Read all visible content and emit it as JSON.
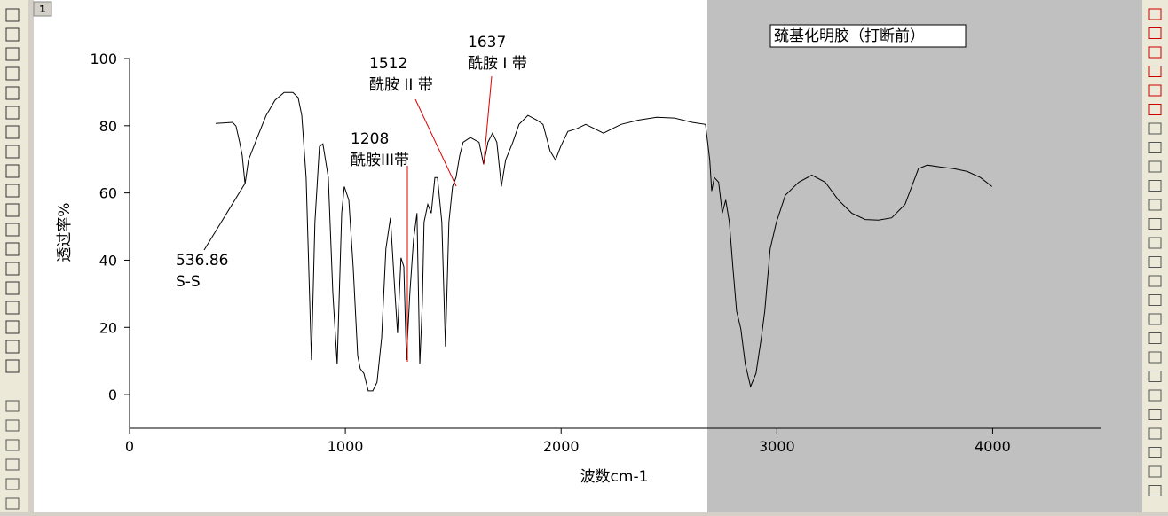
{
  "tab": "1",
  "chart_data": {
    "type": "line",
    "title": "巯基化明胶（打断前）",
    "x_label": "波数cm-1",
    "y_label": "透过率%",
    "xlim": [
      0,
      4500
    ],
    "xticks": [
      0,
      1000,
      2000,
      3000,
      4000
    ],
    "ylim": [
      -10,
      100
    ],
    "yticks": [
      0,
      20,
      40,
      60,
      80,
      100
    ],
    "color": "#000000",
    "x": [
      399,
      477,
      493,
      510,
      522,
      535,
      551,
      592,
      633,
      674,
      716,
      757,
      781,
      798,
      818,
      843,
      859,
      880,
      896,
      921,
      942,
      962,
      983,
      995,
      1016,
      1036,
      1057,
      1069,
      1086,
      1106,
      1127,
      1147,
      1168,
      1188,
      1209,
      1230,
      1242,
      1258,
      1271,
      1283,
      1299,
      1316,
      1332,
      1345,
      1357,
      1365,
      1382,
      1398,
      1415,
      1427,
      1447,
      1464,
      1480,
      1497,
      1513,
      1530,
      1546,
      1579,
      1620,
      1641,
      1661,
      1682,
      1702,
      1723,
      1743,
      1776,
      1805,
      1846,
      1887,
      1916,
      1949,
      1974,
      1998,
      2031,
      2072,
      2114,
      2155,
      2196,
      2237,
      2278,
      2360,
      2443,
      2525,
      2607,
      2669,
      2689,
      2698,
      2710,
      2730,
      2747,
      2763,
      2780,
      2796,
      2813,
      2833,
      2854,
      2878,
      2903,
      2928,
      2944,
      2969,
      2998,
      3039,
      3101,
      3162,
      3224,
      3285,
      3347,
      3409,
      3471,
      3532,
      3594,
      3656,
      3697,
      3758,
      3820,
      3882,
      3943,
      3997
    ],
    "values": [
      80.7,
      81.0,
      79.9,
      75.1,
      71.2,
      62.7,
      69.8,
      76.5,
      83.1,
      87.6,
      89.9,
      89.9,
      88.4,
      83.1,
      64.6,
      10.3,
      51.3,
      73.8,
      74.6,
      64.6,
      30.2,
      9.0,
      54.0,
      61.9,
      57.9,
      38.1,
      11.6,
      7.7,
      6.3,
      1.1,
      1.1,
      3.7,
      16.9,
      43.4,
      52.6,
      30.2,
      18.3,
      40.7,
      38.1,
      10.3,
      30.2,
      46.0,
      54.0,
      9.0,
      27.5,
      51.3,
      56.6,
      54.0,
      64.6,
      64.6,
      51.3,
      14.3,
      51.3,
      61.9,
      64.6,
      71.2,
      75.1,
      76.5,
      75.1,
      68.5,
      75.1,
      77.8,
      75.1,
      61.9,
      69.8,
      75.1,
      80.4,
      83.1,
      81.7,
      80.4,
      72.5,
      69.8,
      73.8,
      78.3,
      79.1,
      80.4,
      79.1,
      77.8,
      79.1,
      80.4,
      81.7,
      82.5,
      82.3,
      81.0,
      80.4,
      69.8,
      60.6,
      64.6,
      63.2,
      54.0,
      57.9,
      51.3,
      38.1,
      24.9,
      19.6,
      9.0,
      2.4,
      6.3,
      16.9,
      24.9,
      43.4,
      51.3,
      59.3,
      63.2,
      65.3,
      63.2,
      57.9,
      54.0,
      52.1,
      51.9,
      52.6,
      56.6,
      67.2,
      68.3,
      67.7,
      67.2,
      66.4,
      64.6,
      61.9
    ],
    "annotations": [
      {
        "label": "536.86",
        "text": "S-S"
      },
      {
        "label": "1208",
        "text": "酰胺III带"
      },
      {
        "label": "1512",
        "text": "酰胺 II 带"
      },
      {
        "label": "1637",
        "text": "酰胺 I 带"
      }
    ]
  }
}
